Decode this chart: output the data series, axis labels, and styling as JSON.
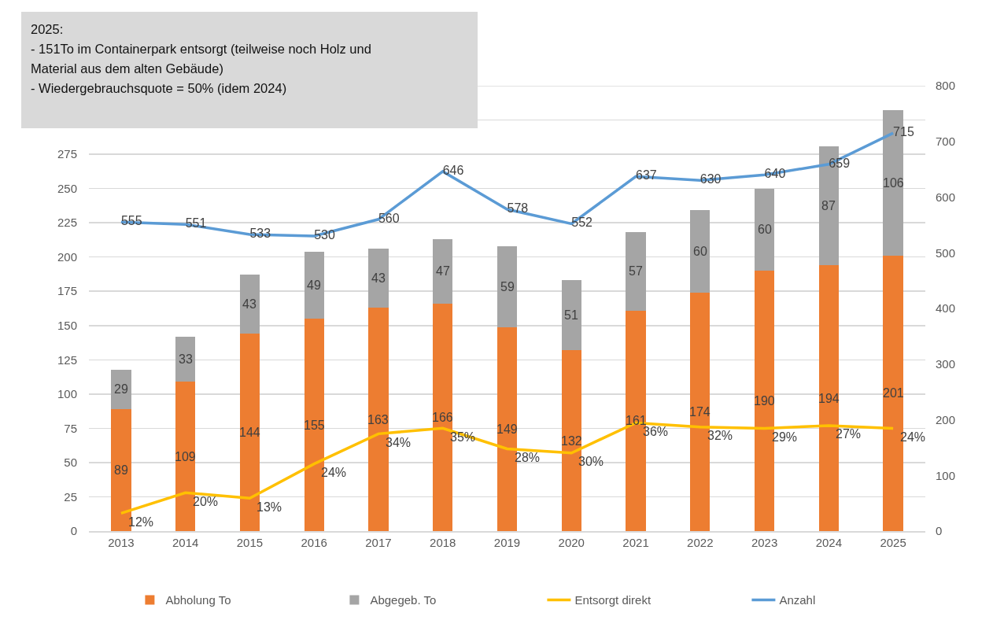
{
  "chart_data": {
    "type": "bar",
    "stacked": true,
    "categories": [
      "2013",
      "2014",
      "2015",
      "2016",
      "2017",
      "2018",
      "2019",
      "2020",
      "2021",
      "2022",
      "2023",
      "2024",
      "2025"
    ],
    "series": [
      {
        "name": "Abholung To",
        "color": "#ed7d31",
        "values": [
          89,
          109,
          144,
          155,
          163,
          166,
          149,
          132,
          161,
          174,
          190,
          194,
          201
        ],
        "value_labels": [
          "89",
          "109",
          "144",
          "155",
          "163",
          "166",
          "149",
          "132",
          "161",
          "174",
          "190",
          "194",
          "201"
        ]
      },
      {
        "name": "Abgegeb. To",
        "color": "#a5a5a5",
        "values": [
          29,
          33,
          43,
          49,
          43,
          47,
          59,
          51,
          57,
          60,
          60,
          87,
          106
        ],
        "value_labels": [
          "29",
          "33",
          "43",
          "49",
          "43",
          "47",
          "59",
          "51",
          "57",
          "60",
          "60",
          "87",
          "106"
        ]
      },
      {
        "name": "Entsorgt direkt",
        "type": "line",
        "color": "#ffc000",
        "values": [
          13,
          28,
          24,
          49,
          71,
          75,
          60,
          57,
          79,
          76,
          75,
          77,
          75
        ]
      },
      {
        "name": "Anzahl",
        "type": "line",
        "axis": "y2",
        "color": "#5b9bd5",
        "values": [
          555,
          551,
          533,
          530,
          560,
          646,
          578,
          552,
          637,
          630,
          640,
          659,
          715
        ],
        "value_labels": [
          "555",
          "551",
          "533",
          "530",
          "560",
          "646",
          "578",
          "552",
          "637",
          "630",
          "640",
          "659",
          "715"
        ]
      }
    ],
    "ylim": [
      0,
      325
    ],
    "yticks": [
      0,
      25,
      50,
      75,
      100,
      125,
      150,
      175,
      200,
      225,
      250,
      275,
      {
        "value": 300,
        "label": null
      },
      {
        "value": 325,
        "label": null
      }
    ],
    "y2lim": [
      0,
      800
    ],
    "y2ticks": [
      0,
      100,
      200,
      300,
      400,
      500,
      600,
      700,
      800
    ],
    "grid": "y",
    "legend": "bottom",
    "line_style": "solid",
    "annotations": [
      "2025:\n- 151To im Containerpark entsorgt (teilweise noch Holz und\nMaterial aus dem alten Gebäude)\n- Wiedergebrauchsquote = 50% (idem 2024)",
      {
        "text": "12%",
        "x": "2013",
        "y": 13
      },
      {
        "text": "20%",
        "x": "2014",
        "y": 28
      },
      {
        "text": "13%",
        "x": "2015",
        "y": 24
      },
      {
        "text": "24%",
        "x": "2016",
        "y": 49
      },
      {
        "text": "34%",
        "x": "2017",
        "y": 71
      },
      {
        "text": "35%",
        "x": "2018",
        "y": 75
      },
      {
        "text": "28%",
        "x": "2019",
        "y": 60
      },
      {
        "text": "30%",
        "x": "2020",
        "y": 57
      },
      {
        "text": "36%",
        "x": "2021",
        "y": 79
      },
      {
        "text": "32%",
        "x": "2022",
        "y": 76
      },
      {
        "text": "29%",
        "x": "2023",
        "y": 75
      },
      {
        "text": "27%",
        "x": "2024",
        "y": 77
      },
      {
        "text": "24%",
        "x": "2025",
        "y": 75
      }
    ]
  }
}
